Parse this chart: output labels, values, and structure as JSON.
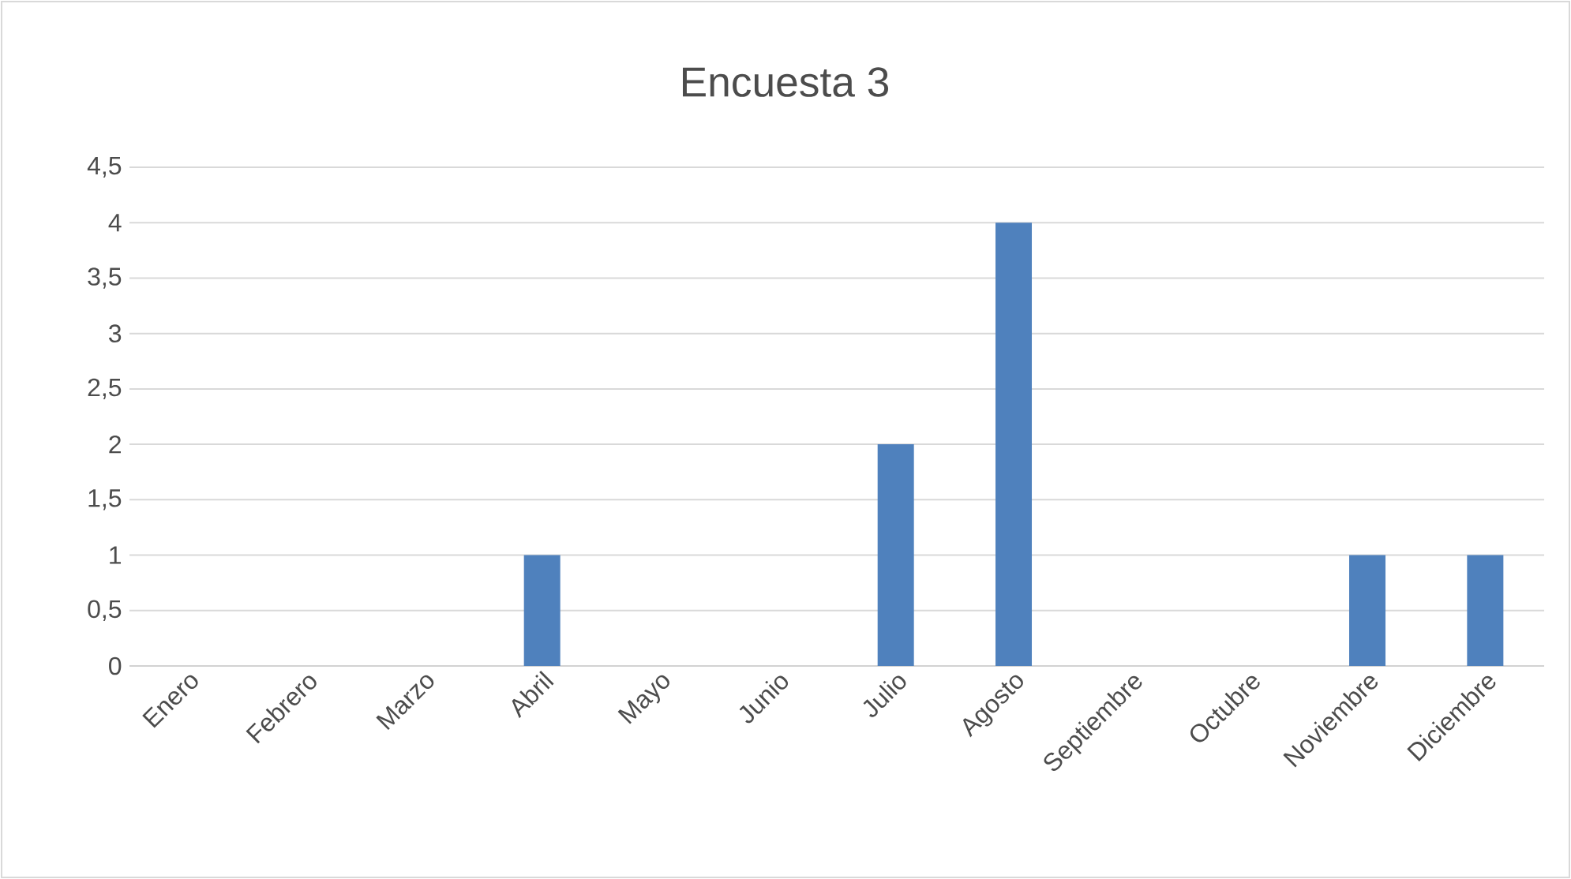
{
  "chart_data": {
    "type": "bar",
    "title": "Encuesta 3",
    "categories": [
      "Enero",
      "Febrero",
      "Marzo",
      "Abril",
      "Mayo",
      "Junio",
      "Julio",
      "Agosto",
      "Septiembre",
      "Octubre",
      "Noviembre",
      "Diciembre"
    ],
    "values": [
      0,
      0,
      0,
      1,
      0,
      0,
      2,
      4,
      0,
      0,
      1,
      1
    ],
    "color": "#4f81bd",
    "ylim": [
      0,
      4.5
    ],
    "yticks": [
      0,
      {
        "value": 0.5,
        "label": "0,5"
      },
      1,
      {
        "value": 1.5,
        "label": "1,5"
      },
      2,
      {
        "value": 2.5,
        "label": "2,5"
      },
      3,
      {
        "value": 3.5,
        "label": "3,5"
      },
      4,
      {
        "value": 4.5,
        "label": "4,5"
      }
    ],
    "grid": "y"
  }
}
